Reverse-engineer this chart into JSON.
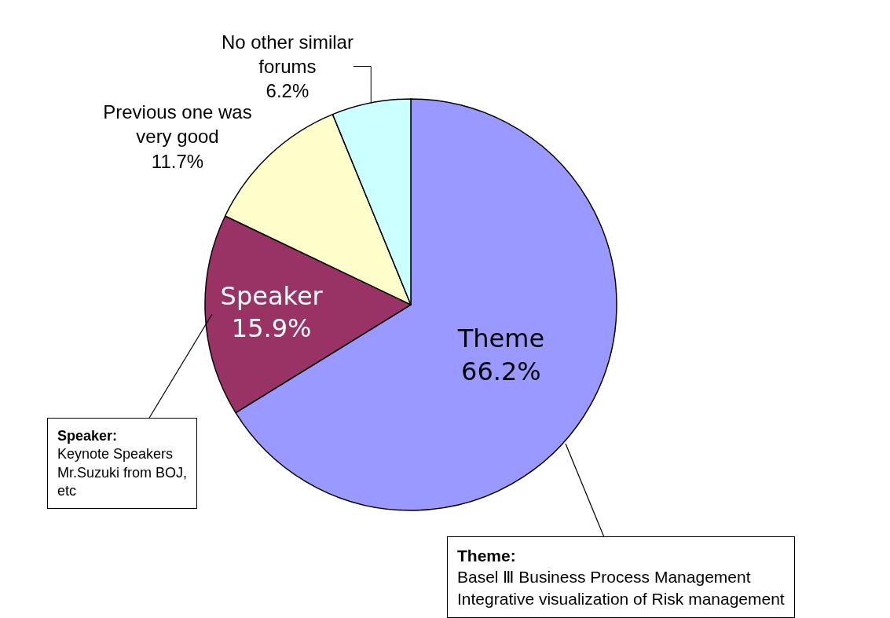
{
  "chart_data": {
    "type": "pie",
    "categories": [
      "Theme",
      "Speaker",
      "Previous one was\nvery good",
      "No other similar\nforums"
    ],
    "values": [
      66.2,
      15.9,
      11.7,
      6.2
    ],
    "value_labels": [
      "66.2%",
      "15.9%",
      "11.7%",
      "6.2%"
    ],
    "colors": [
      "#9999ff",
      "#993366",
      "#ffffcc",
      "#ccffff"
    ],
    "annotations": [
      {
        "text": "Speaker:\nKeynote Speakers\nMr.Suzuki from BOJ,\netc",
        "x": "Speaker"
      },
      {
        "text": "Theme:\nBasel Ⅲ Business Process Management\nIntegrative visualization of Risk management",
        "x": "Theme"
      }
    ],
    "legend": false
  }
}
